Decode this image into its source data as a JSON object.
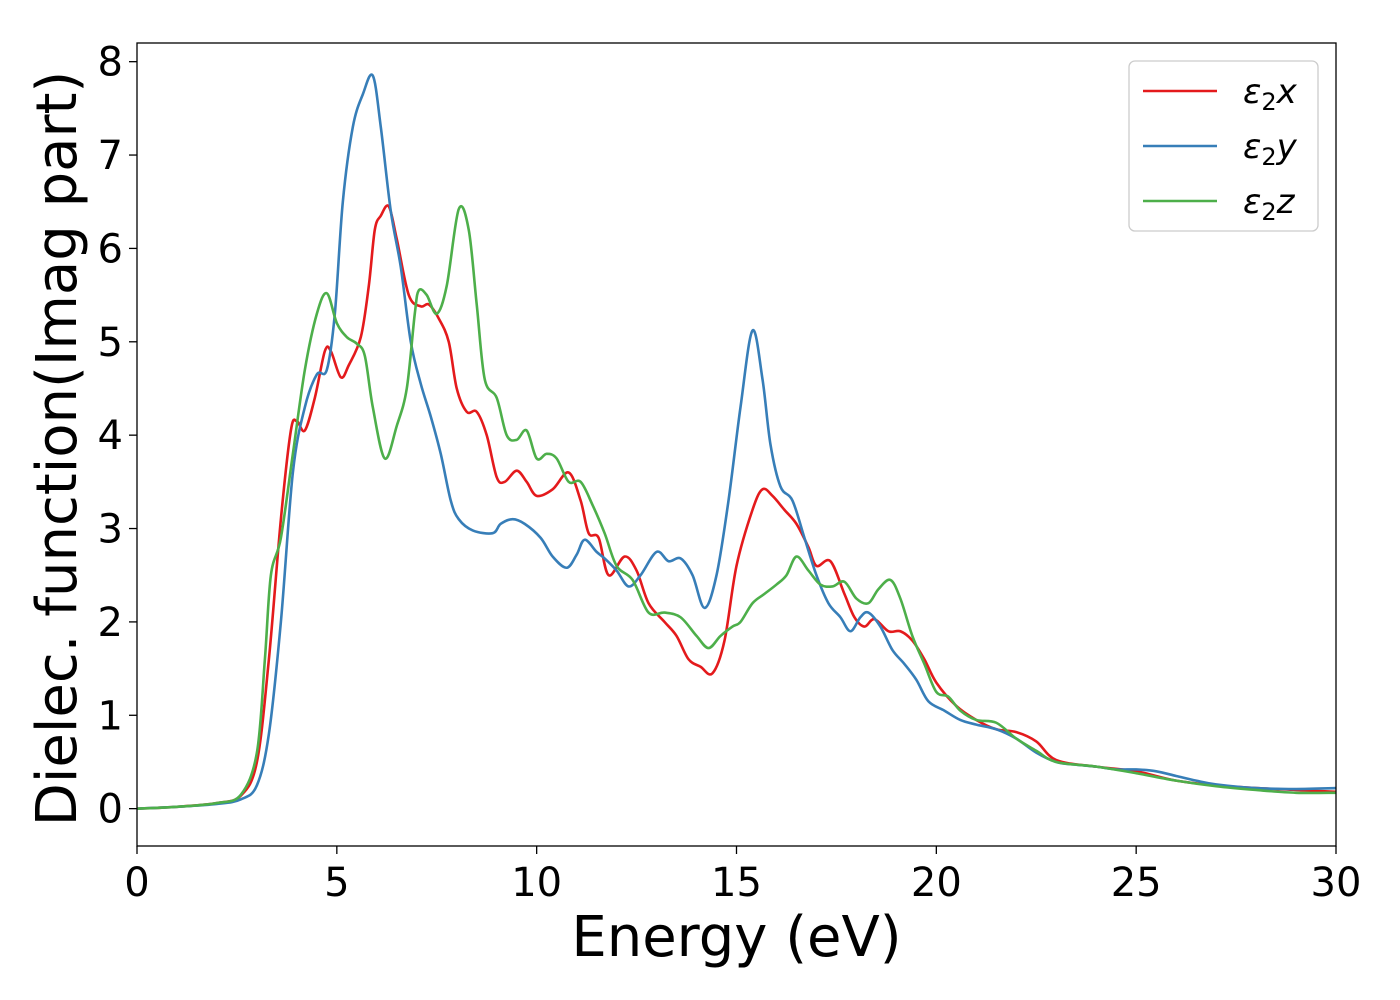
{
  "chart_data": {
    "type": "line",
    "title": "",
    "xlabel": "Energy (eV)",
    "ylabel": "Dielec. function(Imag part)",
    "xlim": [
      0,
      30
    ],
    "ylim": [
      -0.4,
      8.2
    ],
    "xticks": [
      0,
      5,
      10,
      15,
      20,
      25,
      30
    ],
    "yticks": [
      0,
      1,
      2,
      3,
      4,
      5,
      6,
      7,
      8
    ],
    "grid": false,
    "legend_position": "top-right",
    "series": [
      {
        "name": "x",
        "legend_symbol": "ε",
        "legend_subscript": "2",
        "color": "#e41a1c",
        "points": [
          [
            0,
            0
          ],
          [
            1,
            0.02
          ],
          [
            2,
            0.06
          ],
          [
            2.6,
            0.14
          ],
          [
            3.0,
            0.5
          ],
          [
            3.3,
            1.6
          ],
          [
            3.6,
            3.1
          ],
          [
            3.85,
            4.05
          ],
          [
            4.0,
            4.15
          ],
          [
            4.2,
            4.05
          ],
          [
            4.45,
            4.4
          ],
          [
            4.7,
            4.9
          ],
          [
            4.85,
            4.9
          ],
          [
            5.1,
            4.62
          ],
          [
            5.3,
            4.75
          ],
          [
            5.6,
            5.05
          ],
          [
            5.8,
            5.6
          ],
          [
            5.95,
            6.2
          ],
          [
            6.1,
            6.35
          ],
          [
            6.3,
            6.45
          ],
          [
            6.5,
            6.1
          ],
          [
            6.8,
            5.5
          ],
          [
            7.1,
            5.38
          ],
          [
            7.3,
            5.4
          ],
          [
            7.55,
            5.25
          ],
          [
            7.8,
            5.0
          ],
          [
            8.0,
            4.5
          ],
          [
            8.25,
            4.25
          ],
          [
            8.5,
            4.25
          ],
          [
            8.75,
            4.0
          ],
          [
            9.0,
            3.55
          ],
          [
            9.2,
            3.5
          ],
          [
            9.5,
            3.62
          ],
          [
            9.75,
            3.5
          ],
          [
            10.0,
            3.35
          ],
          [
            10.4,
            3.42
          ],
          [
            10.8,
            3.6
          ],
          [
            11.1,
            3.3
          ],
          [
            11.3,
            2.95
          ],
          [
            11.55,
            2.9
          ],
          [
            11.8,
            2.5
          ],
          [
            12.2,
            2.7
          ],
          [
            12.5,
            2.55
          ],
          [
            12.8,
            2.2
          ],
          [
            13.2,
            2.0
          ],
          [
            13.5,
            1.85
          ],
          [
            13.8,
            1.6
          ],
          [
            14.1,
            1.52
          ],
          [
            14.4,
            1.45
          ],
          [
            14.7,
            1.8
          ],
          [
            15.0,
            2.6
          ],
          [
            15.4,
            3.2
          ],
          [
            15.65,
            3.42
          ],
          [
            15.9,
            3.35
          ],
          [
            16.2,
            3.2
          ],
          [
            16.5,
            3.05
          ],
          [
            16.8,
            2.8
          ],
          [
            17.0,
            2.6
          ],
          [
            17.35,
            2.65
          ],
          [
            17.7,
            2.3
          ],
          [
            17.95,
            2.05
          ],
          [
            18.2,
            1.95
          ],
          [
            18.45,
            2.03
          ],
          [
            18.8,
            1.9
          ],
          [
            19.1,
            1.9
          ],
          [
            19.4,
            1.8
          ],
          [
            19.7,
            1.6
          ],
          [
            20.0,
            1.35
          ],
          [
            20.5,
            1.1
          ],
          [
            21.0,
            0.95
          ],
          [
            21.5,
            0.85
          ],
          [
            22.0,
            0.82
          ],
          [
            22.5,
            0.72
          ],
          [
            23.0,
            0.52
          ],
          [
            24.0,
            0.45
          ],
          [
            25.0,
            0.4
          ],
          [
            26.0,
            0.3
          ],
          [
            27.0,
            0.25
          ],
          [
            28.0,
            0.22
          ],
          [
            29.0,
            0.2
          ],
          [
            30.0,
            0.18
          ]
        ]
      },
      {
        "name": "y",
        "legend_symbol": "ε",
        "legend_subscript": "2",
        "color": "#377eb8",
        "points": [
          [
            0,
            0
          ],
          [
            1,
            0.02
          ],
          [
            2,
            0.05
          ],
          [
            2.6,
            0.1
          ],
          [
            3.0,
            0.25
          ],
          [
            3.3,
            0.8
          ],
          [
            3.6,
            2.0
          ],
          [
            3.9,
            3.6
          ],
          [
            4.2,
            4.3
          ],
          [
            4.5,
            4.65
          ],
          [
            4.75,
            4.7
          ],
          [
            4.95,
            5.3
          ],
          [
            5.15,
            6.5
          ],
          [
            5.4,
            7.3
          ],
          [
            5.65,
            7.65
          ],
          [
            5.9,
            7.85
          ],
          [
            6.1,
            7.3
          ],
          [
            6.35,
            6.4
          ],
          [
            6.6,
            5.8
          ],
          [
            6.85,
            5.0
          ],
          [
            7.1,
            4.55
          ],
          [
            7.35,
            4.2
          ],
          [
            7.6,
            3.8
          ],
          [
            7.85,
            3.3
          ],
          [
            8.05,
            3.1
          ],
          [
            8.4,
            2.98
          ],
          [
            8.9,
            2.95
          ],
          [
            9.1,
            3.05
          ],
          [
            9.4,
            3.1
          ],
          [
            9.7,
            3.05
          ],
          [
            10.1,
            2.9
          ],
          [
            10.4,
            2.7
          ],
          [
            10.75,
            2.58
          ],
          [
            11.0,
            2.72
          ],
          [
            11.2,
            2.88
          ],
          [
            11.5,
            2.75
          ],
          [
            11.7,
            2.68
          ],
          [
            12.0,
            2.55
          ],
          [
            12.3,
            2.38
          ],
          [
            12.6,
            2.5
          ],
          [
            13.0,
            2.75
          ],
          [
            13.3,
            2.65
          ],
          [
            13.6,
            2.68
          ],
          [
            13.9,
            2.5
          ],
          [
            14.2,
            2.15
          ],
          [
            14.5,
            2.5
          ],
          [
            14.8,
            3.3
          ],
          [
            15.1,
            4.3
          ],
          [
            15.4,
            5.12
          ],
          [
            15.65,
            4.6
          ],
          [
            15.85,
            3.9
          ],
          [
            16.1,
            3.45
          ],
          [
            16.4,
            3.3
          ],
          [
            16.7,
            2.9
          ],
          [
            17.0,
            2.5
          ],
          [
            17.3,
            2.2
          ],
          [
            17.6,
            2.05
          ],
          [
            17.85,
            1.9
          ],
          [
            18.1,
            2.05
          ],
          [
            18.3,
            2.1
          ],
          [
            18.6,
            1.95
          ],
          [
            18.9,
            1.7
          ],
          [
            19.2,
            1.55
          ],
          [
            19.5,
            1.38
          ],
          [
            19.8,
            1.15
          ],
          [
            20.2,
            1.05
          ],
          [
            20.6,
            0.95
          ],
          [
            21.0,
            0.9
          ],
          [
            21.5,
            0.85
          ],
          [
            22.0,
            0.75
          ],
          [
            22.5,
            0.6
          ],
          [
            23.0,
            0.5
          ],
          [
            23.5,
            0.47
          ],
          [
            24.0,
            0.45
          ],
          [
            24.5,
            0.42
          ],
          [
            25.0,
            0.42
          ],
          [
            25.5,
            0.4
          ],
          [
            26.0,
            0.35
          ],
          [
            26.5,
            0.3
          ],
          [
            27.0,
            0.26
          ],
          [
            28.0,
            0.22
          ],
          [
            29.0,
            0.21
          ],
          [
            30.0,
            0.22
          ]
        ]
      },
      {
        "name": "z",
        "legend_symbol": "ε",
        "legend_subscript": "2",
        "color": "#4daf4a",
        "points": [
          [
            0,
            0
          ],
          [
            1,
            0.02
          ],
          [
            2,
            0.06
          ],
          [
            2.6,
            0.15
          ],
          [
            3.0,
            0.6
          ],
          [
            3.2,
            1.6
          ],
          [
            3.35,
            2.5
          ],
          [
            3.6,
            2.9
          ],
          [
            3.9,
            3.8
          ],
          [
            4.2,
            4.7
          ],
          [
            4.5,
            5.3
          ],
          [
            4.75,
            5.52
          ],
          [
            5.0,
            5.2
          ],
          [
            5.25,
            5.05
          ],
          [
            5.5,
            4.98
          ],
          [
            5.7,
            4.85
          ],
          [
            5.9,
            4.3
          ],
          [
            6.2,
            3.75
          ],
          [
            6.5,
            4.1
          ],
          [
            6.75,
            4.5
          ],
          [
            6.95,
            5.3
          ],
          [
            7.05,
            5.55
          ],
          [
            7.25,
            5.5
          ],
          [
            7.5,
            5.3
          ],
          [
            7.75,
            5.6
          ],
          [
            8.05,
            6.42
          ],
          [
            8.3,
            6.2
          ],
          [
            8.5,
            5.4
          ],
          [
            8.7,
            4.6
          ],
          [
            9.0,
            4.4
          ],
          [
            9.25,
            4.0
          ],
          [
            9.5,
            3.95
          ],
          [
            9.75,
            4.05
          ],
          [
            10.0,
            3.75
          ],
          [
            10.25,
            3.8
          ],
          [
            10.5,
            3.75
          ],
          [
            10.8,
            3.5
          ],
          [
            11.1,
            3.5
          ],
          [
            11.4,
            3.25
          ],
          [
            11.7,
            2.95
          ],
          [
            12.0,
            2.6
          ],
          [
            12.4,
            2.45
          ],
          [
            12.8,
            2.1
          ],
          [
            13.2,
            2.1
          ],
          [
            13.6,
            2.05
          ],
          [
            14.0,
            1.85
          ],
          [
            14.3,
            1.72
          ],
          [
            14.6,
            1.85
          ],
          [
            14.9,
            1.95
          ],
          [
            15.1,
            2.0
          ],
          [
            15.4,
            2.2
          ],
          [
            15.7,
            2.3
          ],
          [
            16.0,
            2.4
          ],
          [
            16.25,
            2.5
          ],
          [
            16.5,
            2.7
          ],
          [
            16.8,
            2.55
          ],
          [
            17.1,
            2.4
          ],
          [
            17.4,
            2.38
          ],
          [
            17.7,
            2.43
          ],
          [
            18.0,
            2.25
          ],
          [
            18.3,
            2.2
          ],
          [
            18.55,
            2.35
          ],
          [
            18.85,
            2.45
          ],
          [
            19.1,
            2.25
          ],
          [
            19.4,
            1.85
          ],
          [
            19.7,
            1.55
          ],
          [
            20.0,
            1.25
          ],
          [
            20.3,
            1.2
          ],
          [
            20.6,
            1.05
          ],
          [
            21.0,
            0.95
          ],
          [
            21.5,
            0.92
          ],
          [
            22.0,
            0.75
          ],
          [
            22.5,
            0.62
          ],
          [
            23.0,
            0.5
          ],
          [
            24.0,
            0.45
          ],
          [
            25.0,
            0.38
          ],
          [
            26.0,
            0.3
          ],
          [
            27.0,
            0.24
          ],
          [
            28.0,
            0.2
          ],
          [
            29.0,
            0.17
          ],
          [
            30.0,
            0.17
          ]
        ]
      }
    ]
  }
}
